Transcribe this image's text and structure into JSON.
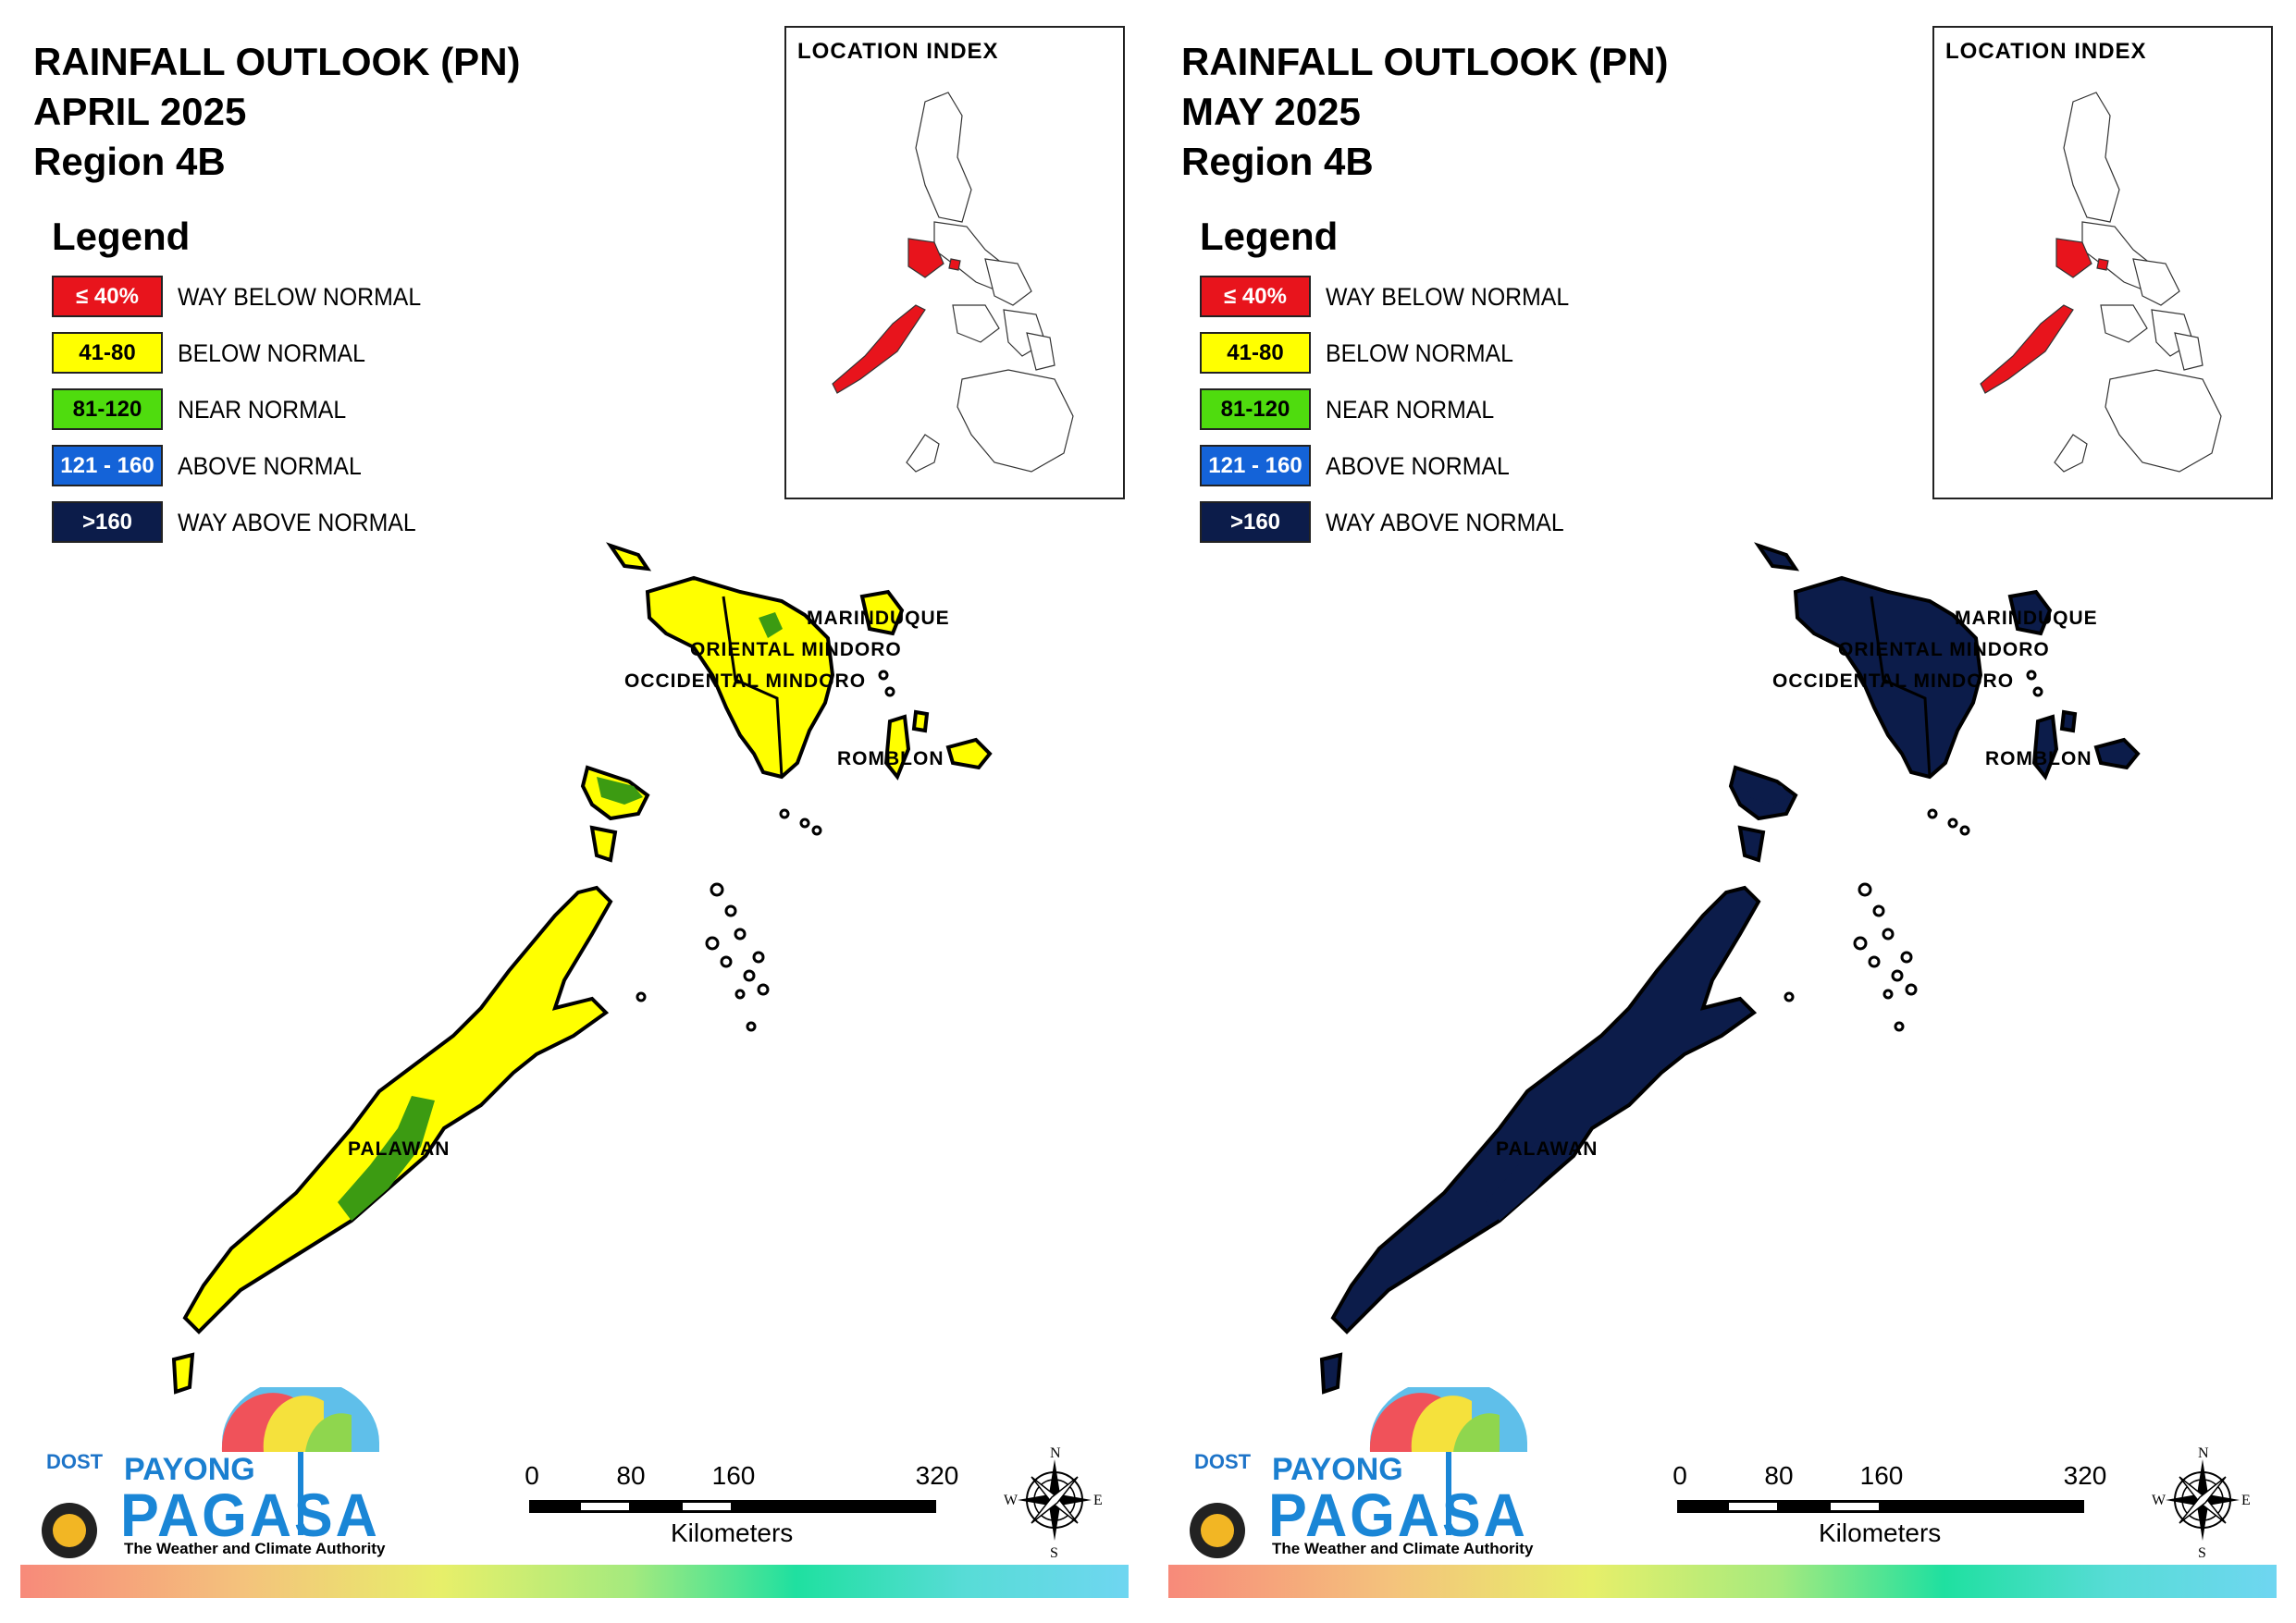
{
  "panels": [
    {
      "title": [
        "RAINFALL OUTLOOK (PN)",
        "APRIL 2025",
        "Region 4B"
      ],
      "map_fill": "#ffff00",
      "accent_fill": "#3c9b12",
      "index_title": "LOCATION INDEX"
    },
    {
      "title": [
        "RAINFALL OUTLOOK (PN)",
        "MAY 2025",
        "Region 4B"
      ],
      "map_fill": "#0c1c4a",
      "accent_fill": "#0c1c4a",
      "index_title": "LOCATION INDEX"
    }
  ],
  "legend": {
    "heading": "Legend",
    "items": [
      {
        "range": "≤ 40%",
        "label": "WAY BELOW NORMAL",
        "color": "#e8141c",
        "text_color": "#ffffff"
      },
      {
        "range": "41-80",
        "label": "BELOW NORMAL",
        "color": "#ffff00",
        "text_color": "#000000"
      },
      {
        "range": "81-120",
        "label": "NEAR NORMAL",
        "color": "#4fdc0e",
        "text_color": "#000000"
      },
      {
        "range": "121 - 160",
        "label": "ABOVE NORMAL",
        "color": "#1463d8",
        "text_color": "#ffffff"
      },
      {
        "range": ">160",
        "label": "WAY ABOVE NORMAL",
        "color": "#0c1c4a",
        "text_color": "#ffffff"
      }
    ]
  },
  "map_labels": {
    "marinduque": "MARINDUQUE",
    "oriental": "ORIENTAL MINDORO",
    "occidental": "OCCIDENTAL MINDORO",
    "romblon": "ROMBLON",
    "palawan": "PALAWAN"
  },
  "logo": {
    "dost": "DOST",
    "payong": "PAYONG",
    "pagasa": "PAGASA",
    "tagline": "The Weather and Climate Authority"
  },
  "scale": {
    "ticks": [
      "0",
      "80",
      "160",
      "320"
    ],
    "unit": "Kilometers"
  },
  "compass": {
    "n": "N",
    "s": "S",
    "e": "E",
    "w": "W"
  }
}
